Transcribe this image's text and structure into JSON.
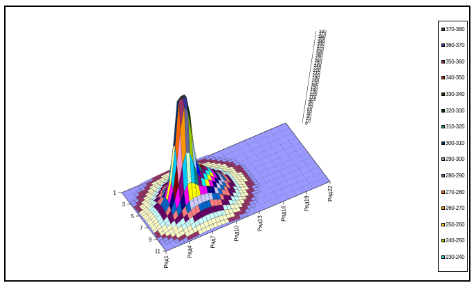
{
  "chart_data": {
    "type": "surface3d",
    "rows": [
      "1",
      "3",
      "5",
      "7",
      "9",
      "11"
    ],
    "series_labels": [
      "Ряд1",
      "Ряд4",
      "Ряд7",
      "Ряд10",
      "Ряд13",
      "Ряд16",
      "Ряд19",
      "Ряд22"
    ],
    "z_ticks": [
      "380",
      "370",
      "360",
      "350",
      "340",
      "330",
      "320",
      "310",
      "300",
      "290",
      "280",
      "270",
      "260",
      "250",
      "240",
      "230",
      "220",
      "210",
      "200",
      "190",
      "180",
      "170",
      "160",
      "150",
      "140",
      "130",
      "120",
      "110",
      "100",
      "90",
      "80",
      "70",
      "60",
      "50",
      "40",
      "30",
      "20",
      "10",
      "0"
    ],
    "zlim": [
      0,
      380
    ],
    "peak": {
      "row": 3,
      "series": 5,
      "value": 380
    },
    "legend": [
      "370-380",
      "360-370",
      "350-360",
      "340-350",
      "330-340",
      "320-330",
      "310-320",
      "300-310",
      "290-300",
      "280-290",
      "270-280",
      "260-270",
      "250-260",
      "240-250",
      "230-240"
    ],
    "colors": {
      "base": "#9999ff",
      "bands": [
        "#993366",
        "#ffffcc",
        "#ccffff",
        "#660066",
        "#ff8080",
        "#0066cc",
        "#ccccff",
        "#000080",
        "#ff00ff",
        "#ffff00",
        "#00ffff",
        "#800080",
        "#800000",
        "#008080",
        "#0000ff",
        "#00ccff",
        "#ccffcc",
        "#ffff99",
        "#99ccff",
        "#ff99cc",
        "#cc99ff",
        "#ffcc99",
        "#3366ff",
        "#33cccc",
        "#99cc00",
        "#ffcc00",
        "#ff9900",
        "#ff6600",
        "#666699",
        "#969696",
        "#003366",
        "#339966",
        "#003300",
        "#333300",
        "#993300",
        "#993366",
        "#333399",
        "#333333"
      ]
    }
  }
}
